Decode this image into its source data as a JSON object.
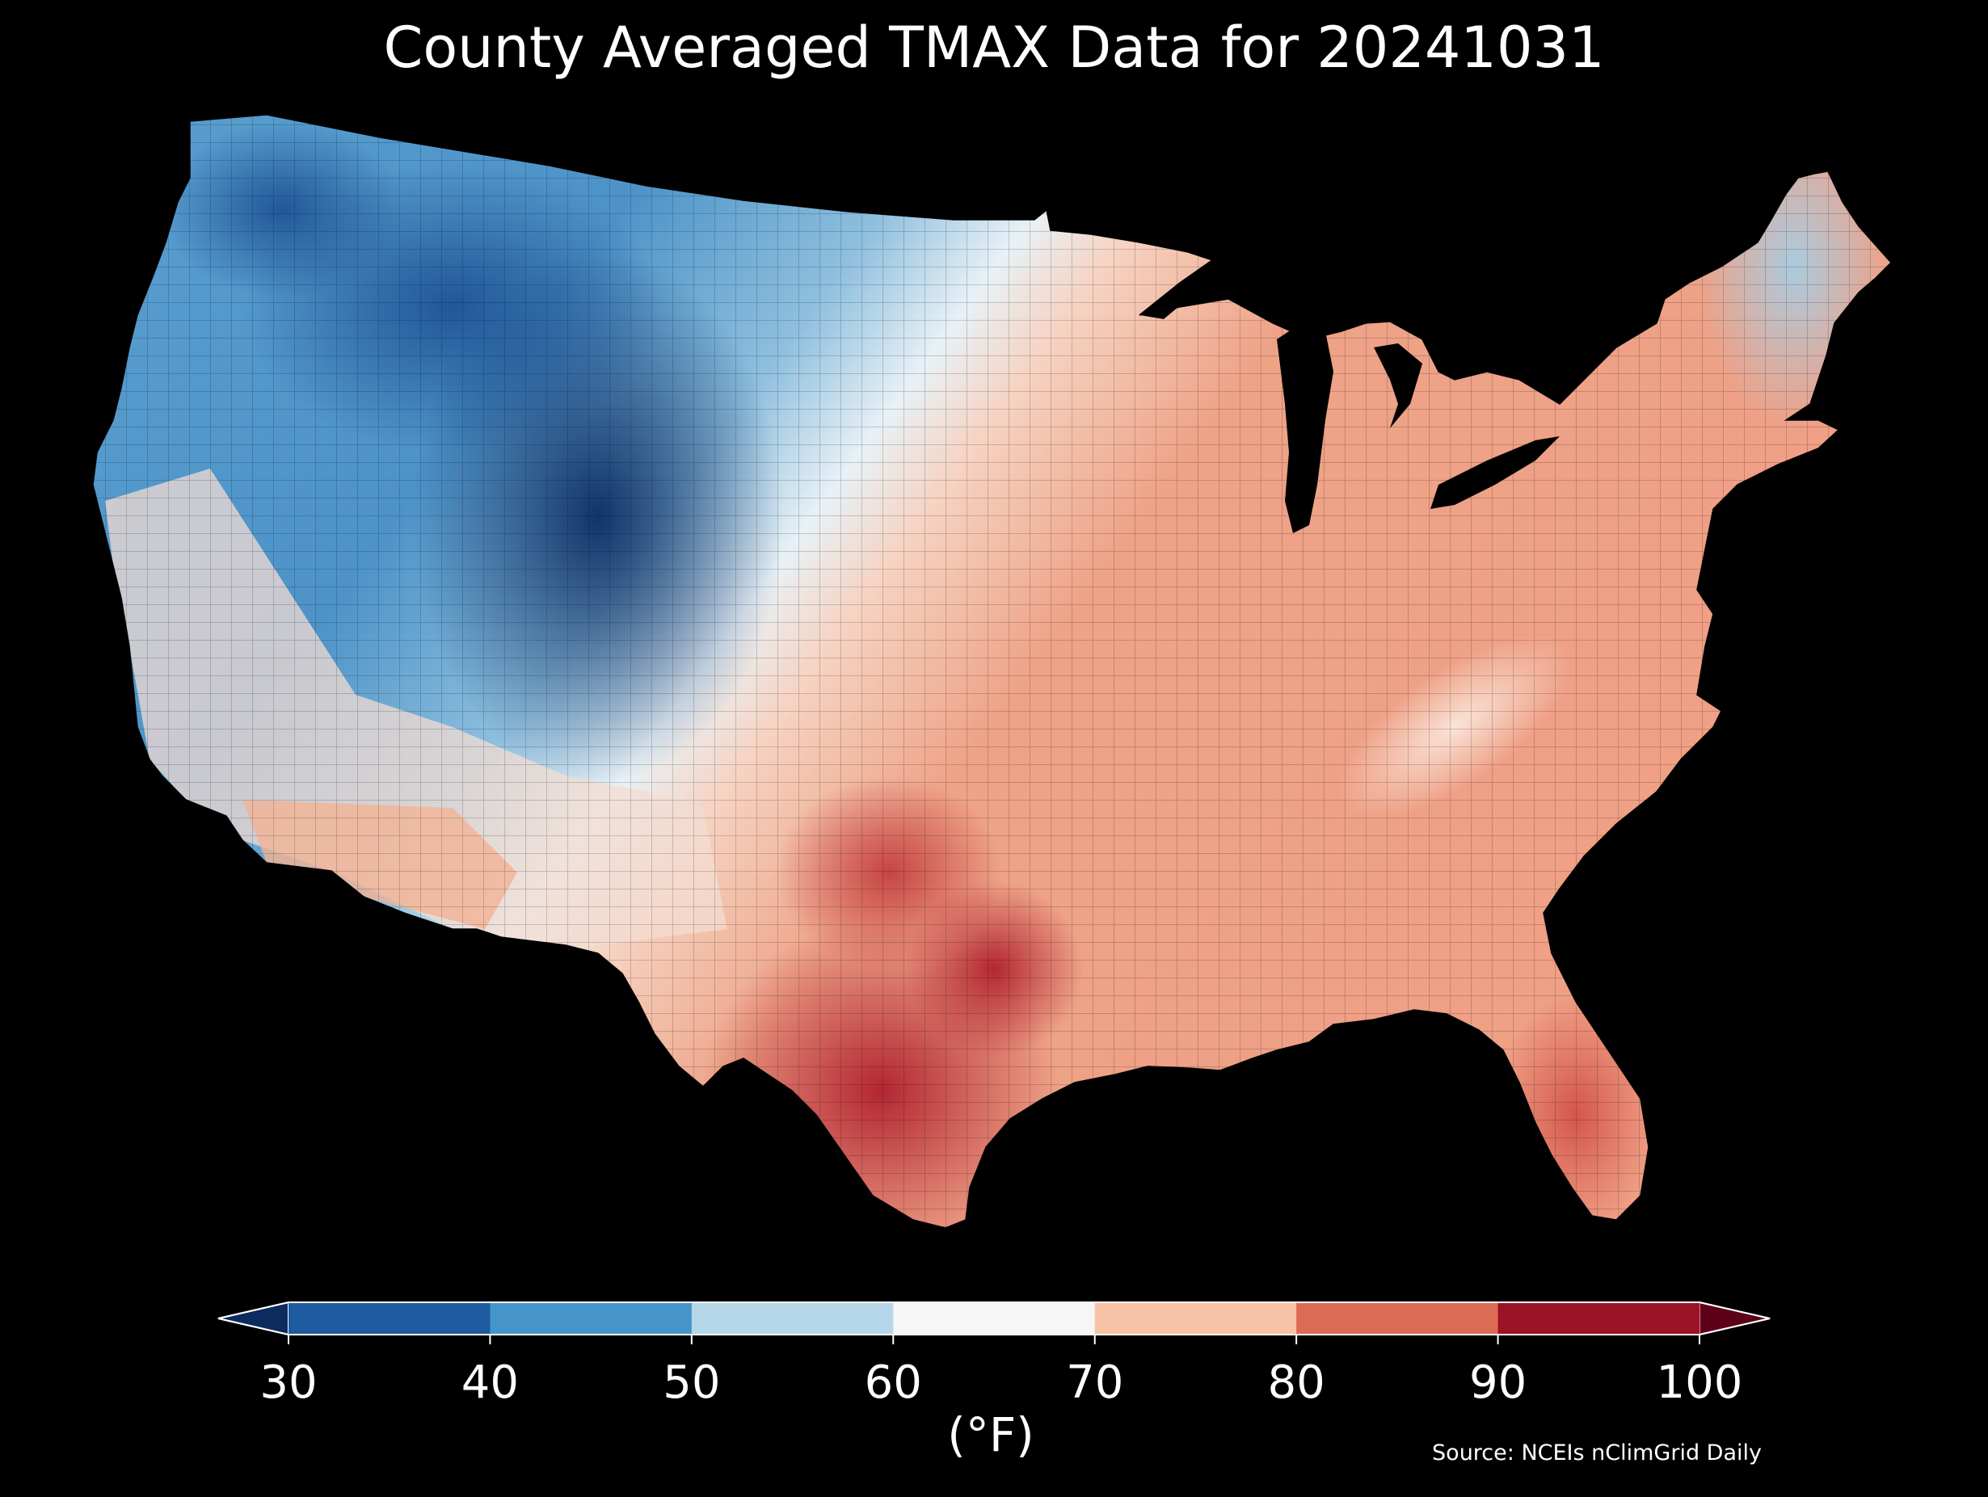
{
  "title": "County Averaged TMAX Data for 20241031",
  "colorbar": {
    "unit_label": "(°F)",
    "ticks": [
      "30",
      "40",
      "50",
      "60",
      "70",
      "80",
      "90",
      "100"
    ],
    "bins": [
      {
        "from": 30,
        "to": 40,
        "color": "#1f5ba0"
      },
      {
        "from": 40,
        "to": 50,
        "color": "#4695c8"
      },
      {
        "from": 50,
        "to": 60,
        "color": "#b5d6e8"
      },
      {
        "from": 60,
        "to": 70,
        "color": "#f6f6f6"
      },
      {
        "from": 70,
        "to": 80,
        "color": "#f8c2a6"
      },
      {
        "from": 80,
        "to": 90,
        "color": "#dc6b55"
      },
      {
        "from": 90,
        "to": 100,
        "color": "#9a1327"
      }
    ],
    "under_color": "#0d2c5e",
    "over_color": "#5e0118"
  },
  "source": "Source: NCEIs nClimGrid Daily",
  "colormap": "RdBu_r"
}
